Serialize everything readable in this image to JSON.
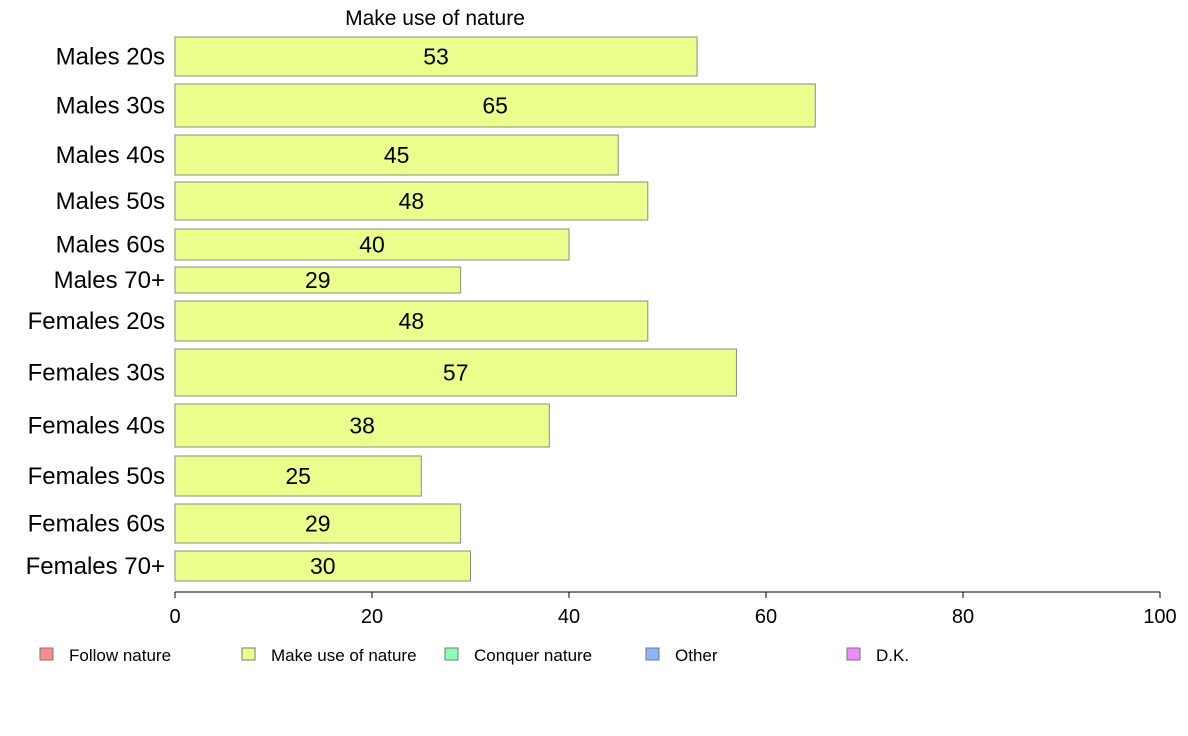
{
  "chart_data": {
    "type": "bar",
    "orientation": "horizontal",
    "title": "Make use of nature",
    "xlim": [
      0,
      100
    ],
    "xticks": [
      "0",
      "20",
      "40",
      "60",
      "80",
      "100"
    ],
    "categories": [
      "Males 20s",
      "Males 30s",
      "Males 40s",
      "Males 50s",
      "Males 60s",
      "Males 70+",
      "Females 20s",
      "Females 30s",
      "Females 40s",
      "Females 50s",
      "Females 60s",
      "Females 70+"
    ],
    "series": [
      {
        "name": "Make use of nature",
        "color": "#ebff8c",
        "values": [
          53,
          65,
          45,
          48,
          40,
          29,
          48,
          57,
          38,
          25,
          29,
          30
        ]
      }
    ],
    "legend": {
      "placement": "bottom",
      "items": [
        {
          "label": "Follow nature",
          "color": "#ff8c8c"
        },
        {
          "label": "Make use of nature",
          "color": "#ebff8c"
        },
        {
          "label": "Conquer nature",
          "color": "#8cffb4"
        },
        {
          "label": "Other",
          "color": "#8cb4ff"
        },
        {
          "label": "D.K.",
          "color": "#eb8cff"
        }
      ]
    },
    "grid": false
  }
}
